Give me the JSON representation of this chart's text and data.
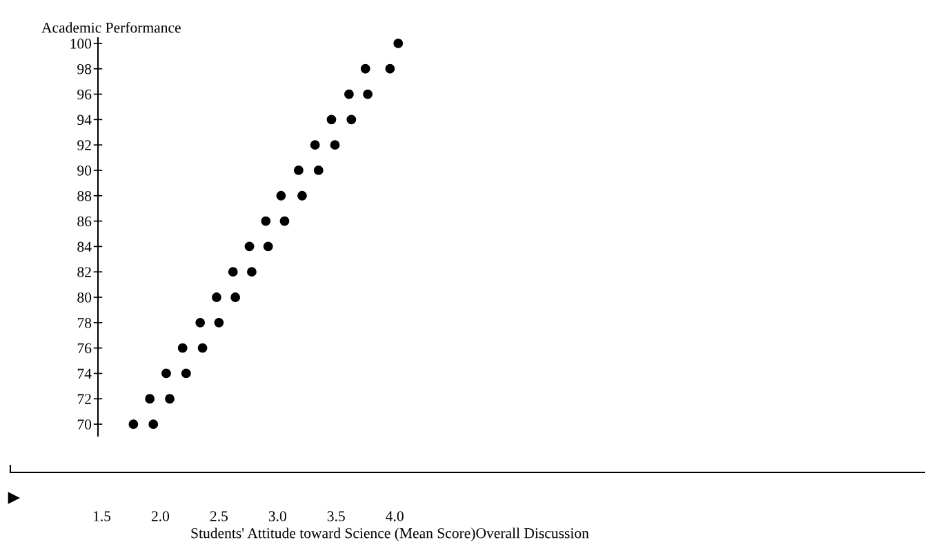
{
  "chart_data": {
    "type": "scatter",
    "xlabel": "Students' Attitude toward Science (Mean Score)Overall Discussion",
    "ylabel": "Academic Performance",
    "x": [
      1.77,
      1.94,
      1.91,
      2.08,
      2.05,
      2.22,
      2.19,
      2.36,
      2.34,
      2.5,
      2.48,
      2.64,
      2.62,
      2.78,
      2.76,
      2.92,
      2.9,
      3.06,
      3.03,
      3.21,
      3.18,
      3.35,
      3.32,
      3.49,
      3.46,
      3.63,
      3.61,
      3.77,
      3.75,
      3.96,
      4.03
    ],
    "series": [
      {
        "color": "#000000",
        "values": [
          70,
          70,
          72,
          72,
          74,
          74,
          76,
          76,
          78,
          78,
          80,
          80,
          82,
          82,
          84,
          84,
          86,
          86,
          88,
          88,
          90,
          90,
          92,
          92,
          94,
          94,
          96,
          96,
          98,
          98,
          100
        ]
      }
    ],
    "xlim": [
      0.72,
      8.52
    ],
    "xticks": [
      {
        "value": 1.5,
        "label": "1.5"
      },
      {
        "value": 2.0,
        "label": "2.0"
      },
      {
        "value": 2.5,
        "label": "2.5"
      },
      {
        "value": 3.0,
        "label": "3.0"
      },
      {
        "value": 3.5,
        "label": "3.5"
      },
      {
        "value": 4.0,
        "label": "4.0"
      }
    ],
    "ylim": [
      66.2,
      100.43
    ],
    "yticks": [
      70,
      72,
      74,
      76,
      78,
      80,
      82,
      84,
      86,
      88,
      90,
      92,
      94,
      96,
      98,
      100
    ],
    "marker": "circle",
    "grid": false,
    "legend": false
  }
}
